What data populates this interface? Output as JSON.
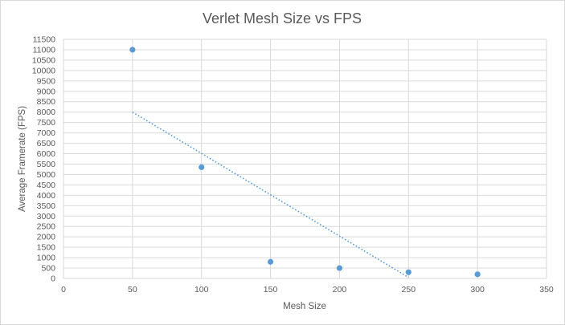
{
  "chart_data": {
    "type": "scatter",
    "title": "Verlet Mesh Size vs FPS",
    "xlabel": "Mesh Size",
    "ylabel": "Average Framerate  (FPS)",
    "xlim": [
      0,
      350
    ],
    "ylim": [
      0,
      11500
    ],
    "x_ticks": [
      0,
      50,
      100,
      150,
      200,
      250,
      300,
      350
    ],
    "y_ticks": [
      0,
      500,
      1000,
      1500,
      2000,
      2500,
      3000,
      3500,
      4000,
      4500,
      5000,
      5500,
      6000,
      6500,
      7000,
      7500,
      8000,
      8500,
      9000,
      9500,
      10000,
      10500,
      11000,
      11500
    ],
    "grid": true,
    "legend": "none",
    "series": [
      {
        "x": [
          50,
          100,
          150,
          200,
          250,
          300
        ],
        "y": [
          11000,
          5350,
          800,
          500,
          300,
          200
        ]
      }
    ],
    "trendline": {
      "type": "linear",
      "style": "dotted",
      "x": [
        50,
        250
      ],
      "y": [
        8000,
        50
      ]
    },
    "colors": {
      "marker": "#5B9BD5",
      "trendline": "#5B9BD5",
      "grid": "#d9d9d9",
      "text": "#595959"
    }
  }
}
